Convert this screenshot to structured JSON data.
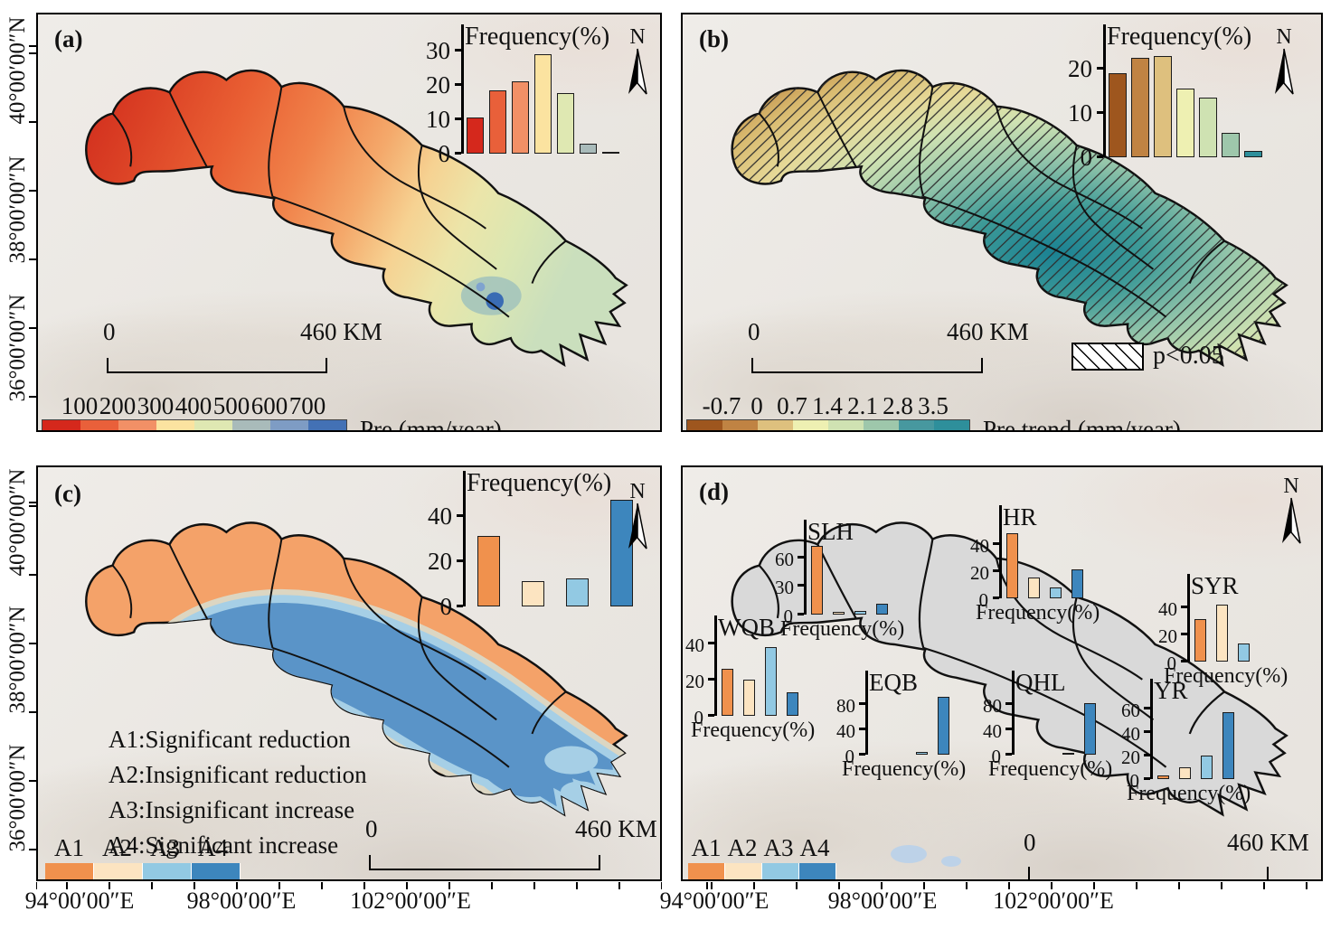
{
  "compass": {
    "label": "N"
  },
  "axes": {
    "lat": [
      "40°00′00″N",
      "38°00′00″N",
      "36°00′00″N"
    ],
    "lon": [
      "94°00′00″E",
      "98°00′00″E",
      "102°00′00″E"
    ]
  },
  "class_colors": [
    "#f0914d",
    "#fce4c1",
    "#92c9e3",
    "#3d86bd"
  ],
  "panels": {
    "a": {
      "label": "(a)",
      "colorbar": {
        "labels": [
          "100",
          "200",
          "300",
          "400",
          "500",
          "600",
          "700"
        ],
        "colors": [
          "#d5281c",
          "#e9603a",
          "#f29066",
          "#fbe3a0",
          "#dfe8b2",
          "#a9bbba",
          "#7e9cc4",
          "#4371b5"
        ],
        "title": "Pre (mm/year)"
      },
      "scalebar": {
        "zero": "0",
        "end": "460 KM"
      }
    },
    "b": {
      "label": "(b)",
      "colorbar": {
        "labels": [
          "-0.7",
          "0",
          "0.7",
          "1.4",
          "2.1",
          "2.8",
          "3.5"
        ],
        "colors": [
          "#9e561e",
          "#c08343",
          "#dec07e",
          "#eef0b2",
          "#cfe2b2",
          "#9ec7ab",
          "#47989f",
          "#2e8f9b"
        ],
        "title": "Pre trend (mm/year)"
      },
      "hatch_label": "p<0.05",
      "scalebar": {
        "zero": "0",
        "end": "460 KM"
      }
    },
    "c": {
      "label": "(c)",
      "annotations": [
        "A1:Significant reduction",
        "A2:Insignificant reduction",
        "A3:Insignificant increase",
        "A4:Significant increase"
      ],
      "legend": {
        "labels": [
          "A1",
          "A2",
          "A3",
          "A4"
        ],
        "colors_ref": "class_colors"
      },
      "scalebar": {
        "zero": "0",
        "end": "460 KM"
      }
    },
    "d": {
      "label": "(d)",
      "legend": {
        "labels": [
          "A1",
          "A2",
          "A3",
          "A4"
        ],
        "colors_ref": "class_colors"
      },
      "scalebar": {
        "zero": "0",
        "end": "460 KM"
      }
    }
  },
  "chart_data": [
    {
      "id": "a-inset",
      "type": "bar",
      "title": "Frequency(%)",
      "yticks": [
        0,
        10,
        20,
        30
      ],
      "ylim": [
        0,
        31
      ],
      "values": [
        10.5,
        18.5,
        21,
        29,
        17.5,
        3,
        0.5
      ],
      "colors": [
        "#d5281c",
        "#e9603a",
        "#f29066",
        "#fbe3a0",
        "#dfe8b2",
        "#a9bbba",
        "#8fa6c6"
      ]
    },
    {
      "id": "b-inset",
      "type": "bar",
      "title": "Frequency(%)",
      "yticks": [
        0,
        10,
        20
      ],
      "ylim": [
        0,
        25
      ],
      "values": [
        19,
        22.5,
        23,
        15.5,
        13.5,
        5.5,
        1.5
      ],
      "colors": [
        "#9e561e",
        "#c08343",
        "#dec07e",
        "#eef0b2",
        "#cfe2b2",
        "#9ec7ab",
        "#2e8f9b"
      ]
    },
    {
      "id": "c-inset",
      "type": "bar",
      "title": "Frequency(%)",
      "categories": [
        "A1",
        "A2",
        "A3",
        "A4"
      ],
      "yticks": [
        0,
        20,
        40
      ],
      "ylim": [
        0,
        50
      ],
      "values": [
        31,
        11,
        12.5,
        47
      ],
      "colors_ref": "class_colors"
    },
    {
      "id": "d-SLH",
      "type": "bar",
      "title": "SLH",
      "xlabel": "Frequency(%)",
      "categories": [
        "A1",
        "A2",
        "A3",
        "A4"
      ],
      "yticks": [
        0,
        30,
        60
      ],
      "ylim": [
        0,
        76
      ],
      "values": [
        72,
        3,
        4,
        11
      ],
      "colors_ref": "class_colors"
    },
    {
      "id": "d-HR",
      "type": "bar",
      "title": "HR",
      "xlabel": "Frequency(%)",
      "categories": [
        "A1",
        "A2",
        "A3",
        "A4"
      ],
      "yticks": [
        0,
        20,
        40
      ],
      "ylim": [
        0,
        52
      ],
      "values": [
        48,
        15,
        8,
        21
      ],
      "colors_ref": "class_colors"
    },
    {
      "id": "d-SYR",
      "type": "bar",
      "title": "SYR",
      "xlabel": "Frequency(%)",
      "categories": [
        "A1",
        "A2",
        "A3",
        "A4"
      ],
      "yticks": [
        0,
        20,
        40
      ],
      "ylim": [
        0,
        48
      ],
      "values": [
        31,
        42,
        13,
        0
      ],
      "colors_ref": "class_colors"
    },
    {
      "id": "d-WQB",
      "type": "bar",
      "title": "WQB",
      "xlabel": "Frequency(%)",
      "categories": [
        "A1",
        "A2",
        "A3",
        "A4"
      ],
      "yticks": [
        0,
        20,
        40
      ],
      "ylim": [
        0,
        43
      ],
      "values": [
        26,
        20,
        38,
        13
      ],
      "colors_ref": "class_colors"
    },
    {
      "id": "d-EQB",
      "type": "bar",
      "title": "EQB",
      "xlabel": "Frequency(%)",
      "categories": [
        "A1",
        "A2",
        "A3",
        "A4"
      ],
      "yticks": [
        0,
        40,
        80
      ],
      "ylim": [
        0,
        97
      ],
      "values": [
        0,
        0,
        4,
        92
      ],
      "colors_ref": "class_colors"
    },
    {
      "id": "d-QHL",
      "type": "bar",
      "title": "QHL",
      "xlabel": "Frequency(%)",
      "categories": [
        "A1",
        "A2",
        "A3",
        "A4"
      ],
      "yticks": [
        0,
        40,
        80
      ],
      "ylim": [
        0,
        97
      ],
      "values": [
        0,
        0,
        1,
        82
      ],
      "colors_ref": "class_colors"
    },
    {
      "id": "d-YR",
      "type": "bar",
      "title": "YR",
      "xlabel": "Frequency(%)",
      "categories": [
        "A1",
        "A2",
        "A3",
        "A4"
      ],
      "yticks": [
        0,
        20,
        40,
        60
      ],
      "ylim": [
        0,
        66
      ],
      "values": [
        3,
        10,
        20,
        57
      ],
      "colors_ref": "class_colors"
    }
  ]
}
